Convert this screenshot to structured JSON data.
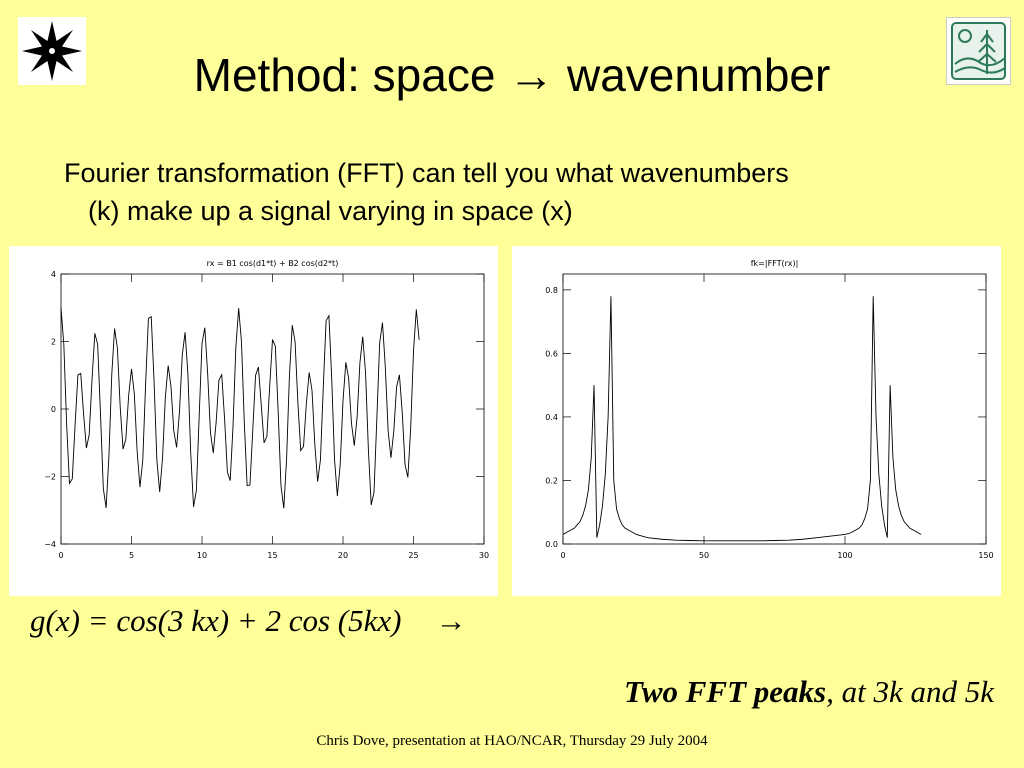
{
  "slide": {
    "title_prefix": "Method:  space",
    "title_arrow": "→",
    "title_suffix": "wavenumber",
    "bullet_line1": "Fourier transformation (FFT) can tell you what wavenumbers",
    "bullet_line2": "(k) make up a signal varying in space (x)",
    "formula": "g(x) = cos(3 kx) + 2 cos (5kx)",
    "formula_arrow": "→",
    "conclusion_bold": "Two FFT peaks",
    "conclusion_rest": ", at 3k and 5k",
    "footer": "Chris Dove, presentation at HAO/NCAR, Thursday 29 July 2004",
    "logo_left_icon": "star-burst-logo-icon",
    "logo_right_icon": "landscape-tree-logo-icon"
  },
  "chart_data": [
    {
      "type": "line",
      "title": "rx = B1 cos(d1*t) + B2 cos(d2*t)",
      "xlabel": "",
      "ylabel": "",
      "xlim": [
        0,
        30
      ],
      "ylim": [
        -4,
        4
      ],
      "x_ticks": [
        0,
        5,
        10,
        15,
        20,
        25,
        30
      ],
      "y_ticks": [
        -4,
        -2,
        0,
        2,
        4
      ],
      "y_tick_labels": [
        "−4",
        "−2",
        "0",
        "2",
        "4"
      ],
      "function": {
        "B1": 1,
        "d1": 3.0,
        "B2": 2,
        "d2": 4.98,
        "t_start": 0,
        "t_end": 25.5,
        "t_step": 0.2
      },
      "grid": false
    },
    {
      "type": "line",
      "title": "fk=|FFT(rx)|",
      "xlabel": "",
      "ylabel": "",
      "xlim": [
        0,
        150
      ],
      "ylim": [
        0,
        0.85
      ],
      "x_ticks": [
        0,
        50,
        100,
        150
      ],
      "y_ticks": [
        0,
        0.2,
        0.4,
        0.6,
        0.8
      ],
      "y_tick_labels": [
        "0.0",
        "0.2",
        "0.4",
        "0.6",
        "0.8"
      ],
      "x": [
        0,
        1,
        2,
        3,
        4,
        5,
        6,
        7,
        8,
        9,
        10,
        11,
        12,
        13,
        14,
        15,
        16,
        17,
        18,
        19,
        20,
        21,
        22,
        23,
        24,
        25,
        26,
        28,
        30,
        35,
        40,
        45,
        50,
        55,
        60,
        65,
        70,
        75,
        80,
        85,
        90,
        95,
        100,
        102,
        103,
        104,
        105,
        106,
        107,
        108,
        109,
        110,
        111,
        112,
        113,
        114,
        115,
        116,
        117,
        118,
        119,
        120,
        121,
        122,
        123,
        124,
        125,
        126,
        127
      ],
      "values": [
        0.03,
        0.035,
        0.04,
        0.045,
        0.05,
        0.06,
        0.07,
        0.09,
        0.12,
        0.17,
        0.27,
        0.5,
        0.02,
        0.06,
        0.12,
        0.22,
        0.4,
        0.78,
        0.2,
        0.11,
        0.08,
        0.06,
        0.05,
        0.045,
        0.04,
        0.035,
        0.03,
        0.025,
        0.02,
        0.015,
        0.012,
        0.011,
        0.01,
        0.01,
        0.01,
        0.01,
        0.01,
        0.011,
        0.012,
        0.015,
        0.02,
        0.025,
        0.03,
        0.035,
        0.04,
        0.045,
        0.05,
        0.06,
        0.08,
        0.11,
        0.2,
        0.78,
        0.4,
        0.22,
        0.12,
        0.06,
        0.02,
        0.5,
        0.27,
        0.17,
        0.12,
        0.09,
        0.07,
        0.06,
        0.05,
        0.045,
        0.04,
        0.035,
        0.03
      ],
      "grid": false
    }
  ]
}
